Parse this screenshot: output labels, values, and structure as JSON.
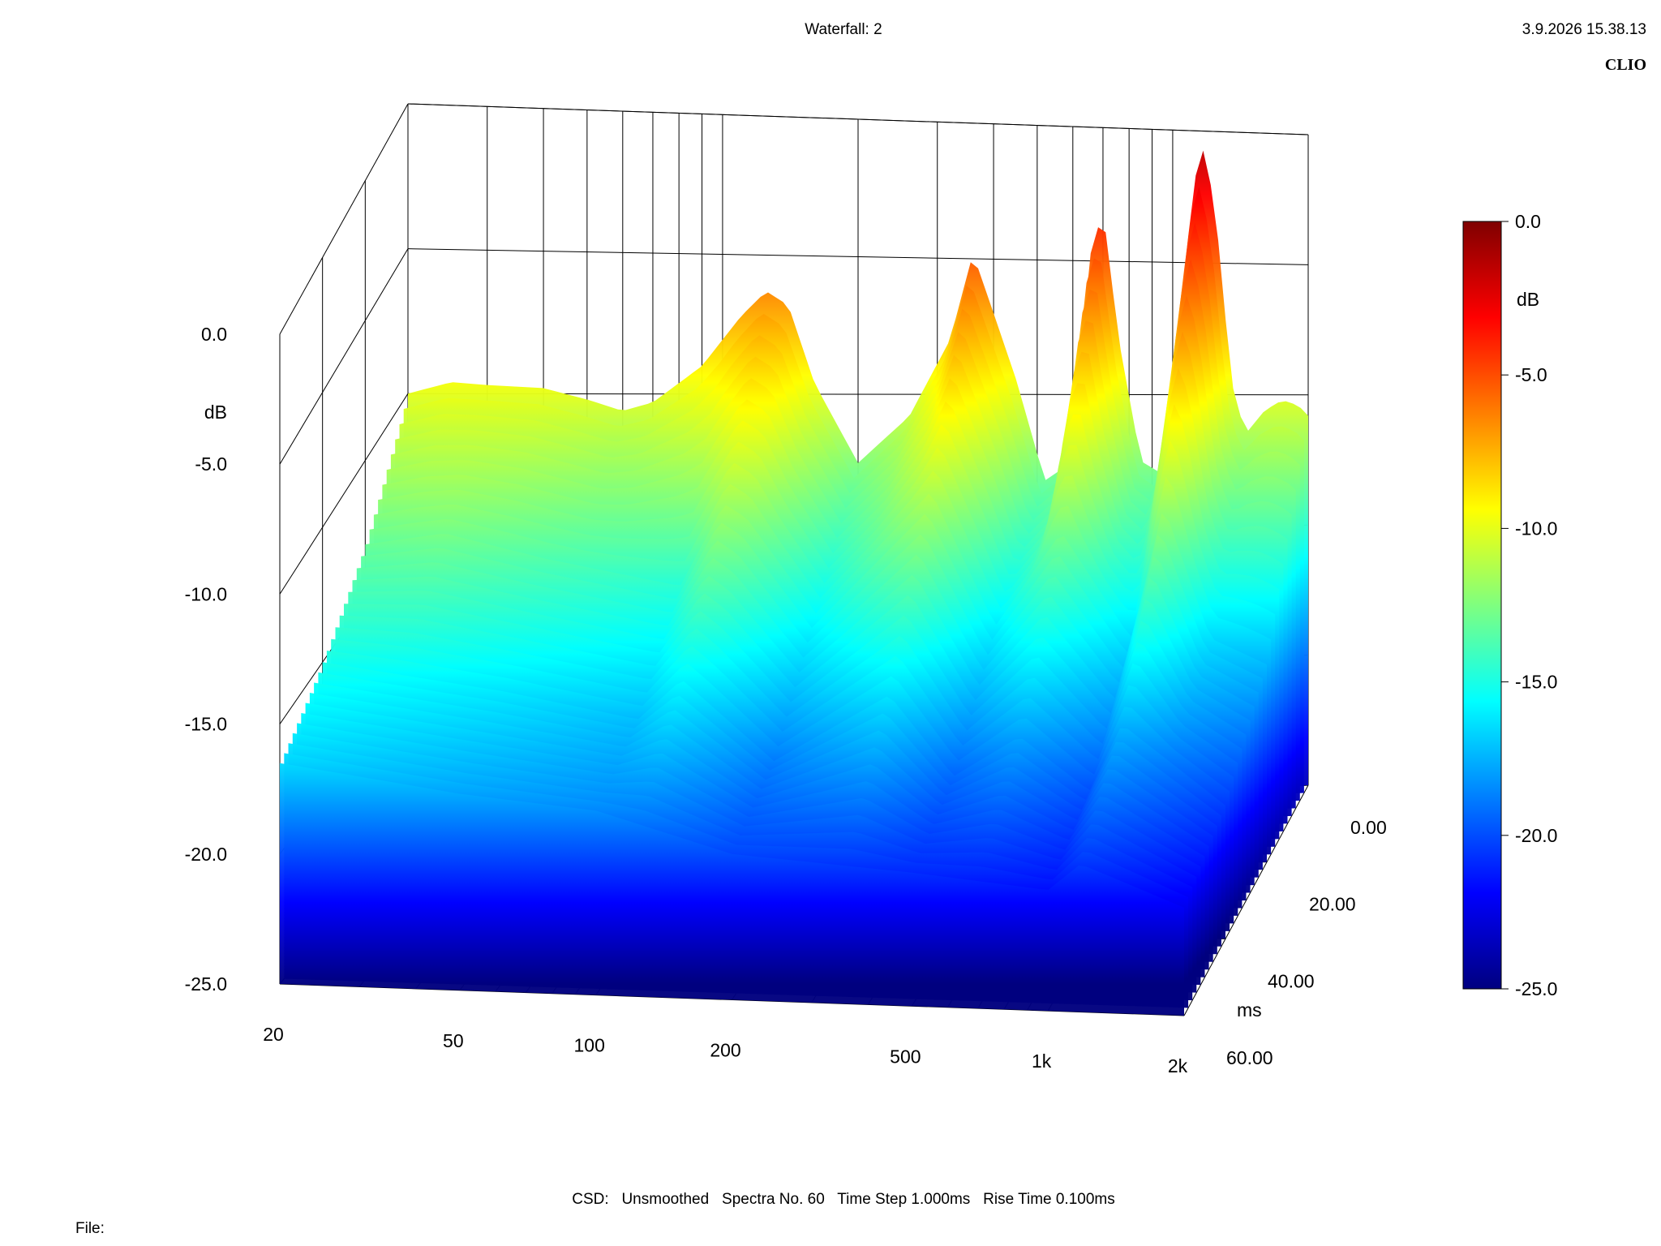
{
  "header": {
    "title": "Waterfall: 2",
    "timestamp": "3.9.2026 15.38.13",
    "brand": "CLIO"
  },
  "footer": {
    "settings": "CSD:   Unsmoothed   Spectra No. 60   Time Step 1.000ms   Rise Time 0.100ms",
    "file_label": "File:"
  },
  "chart_data": {
    "type": "waterfall",
    "title": "Waterfall: 2",
    "x_axis": {
      "label": "",
      "scale": "log",
      "range": [
        20,
        2000
      ],
      "ticks": [
        20,
        50,
        100,
        200,
        500,
        1000,
        2000
      ],
      "tick_labels": [
        "20",
        "50",
        "100",
        "200",
        "500",
        "1k",
        "2k"
      ]
    },
    "y_axis": {
      "label": "dB",
      "range": [
        -25,
        0
      ],
      "ticks": [
        0,
        -5,
        -10,
        -15,
        -20,
        -25
      ],
      "tick_labels": [
        "0.0",
        "-5.0",
        "-10.0",
        "-15.0",
        "-20.0",
        "-25.0"
      ]
    },
    "z_axis": {
      "label": "ms",
      "range": [
        0,
        60
      ],
      "ticks": [
        0,
        20,
        40,
        60
      ],
      "tick_labels": [
        "0.00",
        "20.00",
        "40.00",
        "60.00"
      ]
    },
    "colorbar": {
      "label": "dB",
      "range": [
        -25,
        0
      ],
      "ticks": [
        0,
        -5,
        -10,
        -15,
        -20,
        -25
      ],
      "tick_labels": [
        "0.0",
        "-5.0",
        "-10.0",
        "-15.0",
        "-20.0",
        "-25.0"
      ],
      "colormap": "jet",
      "colors": [
        "#00007f",
        "#0000ff",
        "#007fff",
        "#00ffff",
        "#7fff7f",
        "#ffff00",
        "#ff7f00",
        "#ff0000",
        "#7f0000"
      ]
    },
    "spectra_count": 60,
    "time_step_ms": 1.0,
    "grid": true,
    "series": [
      {
        "time_ms": 0,
        "points": [
          [
            20,
            -10.0
          ],
          [
            25,
            -9.6
          ],
          [
            30,
            -9.7
          ],
          [
            40,
            -9.8
          ],
          [
            50,
            -10.2
          ],
          [
            60,
            -10.6
          ],
          [
            70,
            -10.3
          ],
          [
            90,
            -9.0
          ],
          [
            110,
            -7.2
          ],
          [
            125,
            -6.3
          ],
          [
            140,
            -6.8
          ],
          [
            160,
            -9.6
          ],
          [
            200,
            -12.5
          ],
          [
            260,
            -10.8
          ],
          [
            320,
            -8.0
          ],
          [
            360,
            -4.8
          ],
          [
            400,
            -7.0
          ],
          [
            450,
            -9.5
          ],
          [
            520,
            -13.2
          ],
          [
            600,
            -12.5
          ],
          [
            650,
            -5.0
          ],
          [
            700,
            -3.1
          ],
          [
            760,
            -8.0
          ],
          [
            850,
            -12.5
          ],
          [
            950,
            -13.0
          ],
          [
            1050,
            -6.0
          ],
          [
            1120,
            -1.8
          ],
          [
            1180,
            -0.5
          ],
          [
            1260,
            -4.0
          ],
          [
            1350,
            -9.5
          ],
          [
            1450,
            -11.5
          ],
          [
            1600,
            -10.6
          ],
          [
            1750,
            -10.2
          ],
          [
            1900,
            -10.4
          ],
          [
            2000,
            -10.8
          ]
        ]
      },
      {
        "time_ms": 20,
        "points": [
          [
            20,
            -13.0
          ],
          [
            30,
            -12.6
          ],
          [
            50,
            -13.5
          ],
          [
            100,
            -14.5
          ],
          [
            125,
            -11.5
          ],
          [
            140,
            -12.0
          ],
          [
            200,
            -15.5
          ],
          [
            360,
            -11.0
          ],
          [
            500,
            -16.0
          ],
          [
            700,
            -12.5
          ],
          [
            1000,
            -16.5
          ],
          [
            1180,
            -11.5
          ],
          [
            1500,
            -16.5
          ],
          [
            2000,
            -17.5
          ]
        ]
      },
      {
        "time_ms": 40,
        "points": [
          [
            20,
            -15.0
          ],
          [
            50,
            -16.0
          ],
          [
            100,
            -17.0
          ],
          [
            125,
            -15.5
          ],
          [
            200,
            -18.5
          ],
          [
            360,
            -16.0
          ],
          [
            500,
            -19.0
          ],
          [
            700,
            -17.5
          ],
          [
            1000,
            -19.5
          ],
          [
            1180,
            -17.0
          ],
          [
            2000,
            -20.0
          ]
        ]
      },
      {
        "time_ms": 60,
        "points": [
          [
            20,
            -16.5
          ],
          [
            50,
            -17.5
          ],
          [
            100,
            -18.0
          ],
          [
            200,
            -19.5
          ],
          [
            500,
            -20.0
          ],
          [
            1000,
            -20.5
          ],
          [
            1180,
            -19.5
          ],
          [
            2000,
            -21.0
          ]
        ]
      }
    ]
  }
}
